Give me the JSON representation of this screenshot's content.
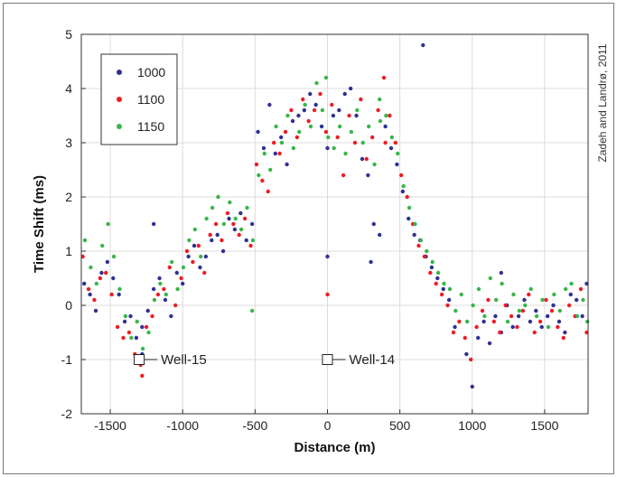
{
  "chart_data": {
    "type": "scatter",
    "title": "",
    "xlabel": "Distance (m)",
    "ylabel": "Time Shift (ms)",
    "xlim": [
      -1700,
      1800
    ],
    "ylim": [
      -2,
      5
    ],
    "xticks": [
      -1500,
      -1000,
      -500,
      0,
      500,
      1000,
      1500
    ],
    "yticks": [
      -2,
      -1,
      0,
      1,
      2,
      3,
      4,
      5
    ],
    "grid": true,
    "legend_position": "top-left",
    "series": [
      {
        "name": "1000",
        "color": "#2e3192",
        "x": [
          -1680,
          -1640,
          -1600,
          -1560,
          -1520,
          -1480,
          -1440,
          -1400,
          -1360,
          -1320,
          -1280,
          -1240,
          -1200,
          -1160,
          -1120,
          -1080,
          -1040,
          -1000,
          -960,
          -920,
          -880,
          -840,
          -800,
          -760,
          -720,
          -680,
          -640,
          -600,
          -560,
          -520,
          -480,
          -440,
          -400,
          -360,
          -320,
          -280,
          -240,
          -200,
          -160,
          -120,
          -80,
          -40,
          0,
          40,
          80,
          120,
          160,
          200,
          240,
          280,
          320,
          360,
          400,
          440,
          480,
          520,
          560,
          600,
          640,
          680,
          720,
          760,
          800,
          840,
          880,
          960,
          1000,
          1040,
          1080,
          1120,
          1160,
          1200,
          1240,
          1280,
          1320,
          1360,
          1400,
          1440,
          1480,
          1520,
          1560,
          1600,
          1640,
          1680,
          1720,
          1760,
          1790,
          1200,
          -1280,
          660,
          -1200,
          0,
          300
        ],
        "y": [
          0.4,
          0.2,
          -0.1,
          0.6,
          0.8,
          0.5,
          0.2,
          -0.3,
          -0.2,
          -0.6,
          -0.4,
          -0.1,
          0.3,
          0.5,
          0.1,
          -0.2,
          0.6,
          0.4,
          0.9,
          1.1,
          0.7,
          0.9,
          1.2,
          1.3,
          1.0,
          1.6,
          1.4,
          1.7,
          1.2,
          1.5,
          3.2,
          2.9,
          3.7,
          2.8,
          3.1,
          2.6,
          3.4,
          3.5,
          3.6,
          3.9,
          3.7,
          3.3,
          2.9,
          3.5,
          3.6,
          3.9,
          4.0,
          3.5,
          2.7,
          2.4,
          1.5,
          1.3,
          3.3,
          2.9,
          2.6,
          2.1,
          1.6,
          1.3,
          1.2,
          0.9,
          0.7,
          0.5,
          0.3,
          0.1,
          -0.4,
          -0.9,
          -1.5,
          -0.6,
          -0.3,
          -0.7,
          -0.2,
          -0.5,
          0.0,
          -0.4,
          -0.2,
          0.1,
          -0.3,
          -0.1,
          -0.4,
          -0.2,
          0.0,
          -0.3,
          -0.5,
          0.2,
          0.1,
          -0.2,
          0.4,
          0.6,
          -0.9,
          4.8,
          1.5,
          0.9,
          0.8
        ]
      },
      {
        "name": "1100",
        "color": "#ed1c24",
        "x": [
          -1690,
          -1650,
          -1610,
          -1570,
          -1530,
          -1490,
          -1450,
          -1410,
          -1370,
          -1330,
          -1290,
          -1250,
          -1210,
          -1170,
          -1130,
          -1090,
          -1050,
          -1010,
          -970,
          -930,
          -890,
          -850,
          -810,
          -770,
          -730,
          -690,
          -650,
          -610,
          -570,
          -530,
          -490,
          -450,
          -410,
          -370,
          -330,
          -290,
          -250,
          -210,
          -170,
          -130,
          -90,
          -50,
          -10,
          30,
          70,
          110,
          150,
          190,
          230,
          270,
          310,
          350,
          390,
          430,
          470,
          510,
          550,
          590,
          630,
          670,
          710,
          750,
          790,
          830,
          870,
          910,
          950,
          990,
          1030,
          1070,
          1110,
          1150,
          1190,
          1230,
          1270,
          1310,
          1350,
          1390,
          1430,
          1470,
          1510,
          1550,
          1590,
          1630,
          1670,
          1710,
          1750,
          1790,
          0,
          -1280,
          400
        ],
        "y": [
          0.9,
          0.3,
          0.1,
          0.5,
          0.6,
          0.2,
          -0.4,
          -0.6,
          -0.5,
          -0.9,
          -1.1,
          -0.4,
          -0.2,
          0.2,
          0.3,
          0.7,
          0.0,
          0.5,
          1.0,
          0.8,
          1.1,
          0.6,
          1.3,
          1.5,
          1.2,
          1.7,
          1.5,
          1.3,
          1.6,
          1.1,
          2.6,
          2.3,
          2.1,
          3.0,
          2.8,
          3.2,
          3.6,
          3.1,
          3.8,
          3.4,
          3.6,
          3.9,
          3.2,
          3.7,
          3.1,
          2.4,
          3.5,
          3.0,
          3.8,
          2.7,
          3.1,
          3.6,
          4.2,
          3.5,
          3.0,
          2.4,
          2.0,
          1.5,
          1.1,
          0.9,
          0.6,
          0.4,
          0.2,
          0.0,
          -0.5,
          -0.3,
          -0.6,
          -1.0,
          -0.4,
          -0.1,
          0.1,
          -0.3,
          -0.5,
          0.0,
          -0.2,
          -0.4,
          -0.1,
          0.2,
          -0.5,
          -0.3,
          0.1,
          -0.1,
          -0.4,
          -0.6,
          0.0,
          -0.2,
          0.3,
          -0.5,
          0.2,
          -1.3,
          3.0
        ]
      },
      {
        "name": "1150",
        "color": "#39b54a",
        "x": [
          -1675,
          -1635,
          -1595,
          -1555,
          -1515,
          -1475,
          -1435,
          -1395,
          -1355,
          -1315,
          -1275,
          -1235,
          -1195,
          -1155,
          -1115,
          -1075,
          -1035,
          -995,
          -955,
          -915,
          -875,
          -835,
          -795,
          -755,
          -715,
          -675,
          -635,
          -595,
          -555,
          -515,
          -475,
          -435,
          -395,
          -355,
          -315,
          -275,
          -235,
          -195,
          -155,
          -115,
          -75,
          -35,
          5,
          45,
          85,
          125,
          165,
          205,
          245,
          285,
          325,
          365,
          405,
          445,
          485,
          525,
          565,
          605,
          645,
          685,
          725,
          765,
          805,
          845,
          885,
          925,
          965,
          1005,
          1045,
          1085,
          1125,
          1165,
          1205,
          1245,
          1285,
          1325,
          1365,
          1405,
          1445,
          1485,
          1525,
          1565,
          1605,
          1645,
          1685,
          1725,
          1765,
          1795,
          -10,
          -520,
          360
        ],
        "y": [
          1.2,
          0.7,
          0.4,
          1.1,
          1.5,
          0.9,
          0.3,
          -0.2,
          -0.6,
          -0.3,
          -0.8,
          -0.5,
          0.1,
          0.4,
          0.2,
          0.8,
          0.3,
          0.7,
          1.2,
          1.4,
          0.9,
          1.6,
          1.8,
          2.0,
          1.5,
          1.9,
          1.6,
          1.4,
          1.8,
          1.2,
          2.4,
          2.8,
          2.5,
          3.3,
          3.0,
          3.5,
          2.9,
          3.2,
          3.7,
          3.3,
          4.1,
          3.6,
          3.1,
          2.9,
          3.3,
          2.8,
          3.2,
          3.6,
          3.0,
          3.3,
          2.6,
          3.4,
          3.5,
          3.1,
          2.8,
          2.2,
          1.8,
          1.5,
          1.2,
          1.0,
          0.8,
          0.6,
          0.4,
          0.3,
          -0.1,
          0.2,
          -0.3,
          0.0,
          0.3,
          -0.2,
          0.5,
          0.1,
          0.4,
          -0.3,
          0.2,
          -0.1,
          0.0,
          0.3,
          -0.2,
          0.1,
          -0.4,
          0.2,
          -0.1,
          0.3,
          0.4,
          -0.2,
          0.1,
          -0.3,
          4.2,
          -0.1,
          3.8
        ]
      }
    ],
    "annotations": [
      {
        "label": "Well-15",
        "x": -1300,
        "y": -1
      },
      {
        "label": "Well-14",
        "x": 0,
        "y": -1
      }
    ],
    "credit": "Zadeh and Landrø, 2011"
  }
}
